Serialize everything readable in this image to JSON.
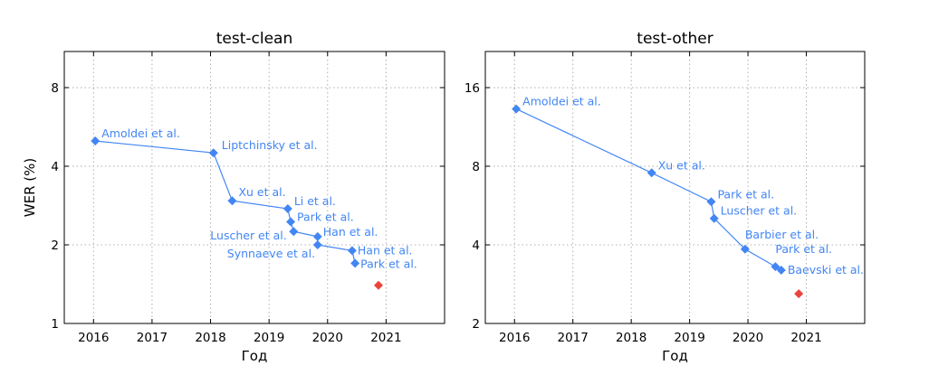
{
  "colors": {
    "line": "#4286f4",
    "highlight": "#e8453c",
    "grid": "#b0b0b0",
    "axes": "#000000"
  },
  "chart_data": [
    {
      "type": "line",
      "title": "test-clean",
      "xlabel": "Год",
      "ylabel": "WER (%)",
      "yscale": "log2",
      "xlim": [
        2015.5,
        2022.0
      ],
      "ylim": [
        1,
        11
      ],
      "grid": true,
      "xticks": [
        2016,
        2017,
        2018,
        2019,
        2020,
        2021
      ],
      "xtick_labels": [
        "2016",
        "2017",
        "2018",
        "2019",
        "2020",
        "2021"
      ],
      "yticks": [
        1,
        2,
        4,
        8
      ],
      "ytick_labels": [
        "1",
        "2",
        "4",
        "8"
      ],
      "series": [
        {
          "points": [
            {
              "x": 2016.03,
              "y": 5.0,
              "label": "Amoldei et al."
            },
            {
              "x": 2018.05,
              "y": 4.5,
              "label": "Liptchinsky et al."
            },
            {
              "x": 2018.37,
              "y": 2.95,
              "label": "Xu et al."
            },
            {
              "x": 2019.32,
              "y": 2.75,
              "label": "Li et al."
            },
            {
              "x": 2019.37,
              "y": 2.45,
              "label": "Park et al."
            },
            {
              "x": 2019.42,
              "y": 2.25,
              "label": "Luscher et al."
            },
            {
              "x": 2019.83,
              "y": 2.15,
              "label": "Han et al."
            },
            {
              "x": 2019.83,
              "y": 2.0,
              "label": "Synnaeve et al."
            },
            {
              "x": 2020.42,
              "y": 1.9,
              "label": "Han et al."
            },
            {
              "x": 2020.47,
              "y": 1.7,
              "label": "Park et al."
            }
          ]
        }
      ],
      "highlight": [
        {
          "x": 2020.87,
          "y": 1.4
        }
      ]
    },
    {
      "type": "line",
      "title": "test-other",
      "xlabel": "Год",
      "ylabel": "",
      "yscale": "log2",
      "xlim": [
        2015.5,
        2022.0
      ],
      "ylim": [
        2,
        22
      ],
      "grid": true,
      "xticks": [
        2016,
        2017,
        2018,
        2019,
        2020,
        2021
      ],
      "xtick_labels": [
        "2016",
        "2017",
        "2018",
        "2019",
        "2020",
        "2021"
      ],
      "yticks": [
        2,
        4,
        8,
        16
      ],
      "ytick_labels": [
        "2",
        "4",
        "8",
        "16"
      ],
      "series": [
        {
          "points": [
            {
              "x": 2016.03,
              "y": 13.25,
              "label": "Amoldei et al."
            },
            {
              "x": 2018.35,
              "y": 7.55,
              "label": "Xu et al."
            },
            {
              "x": 2019.37,
              "y": 5.85,
              "label": "Park et al."
            },
            {
              "x": 2019.42,
              "y": 5.05,
              "label": "Luscher et al."
            },
            {
              "x": 2019.95,
              "y": 3.85,
              "label": "Barbier et al."
            },
            {
              "x": 2020.47,
              "y": 3.3,
              "label": "Park et al."
            },
            {
              "x": 2020.57,
              "y": 3.2,
              "label": "Baevski et al."
            }
          ]
        }
      ],
      "highlight": [
        {
          "x": 2020.87,
          "y": 2.6
        }
      ]
    }
  ]
}
